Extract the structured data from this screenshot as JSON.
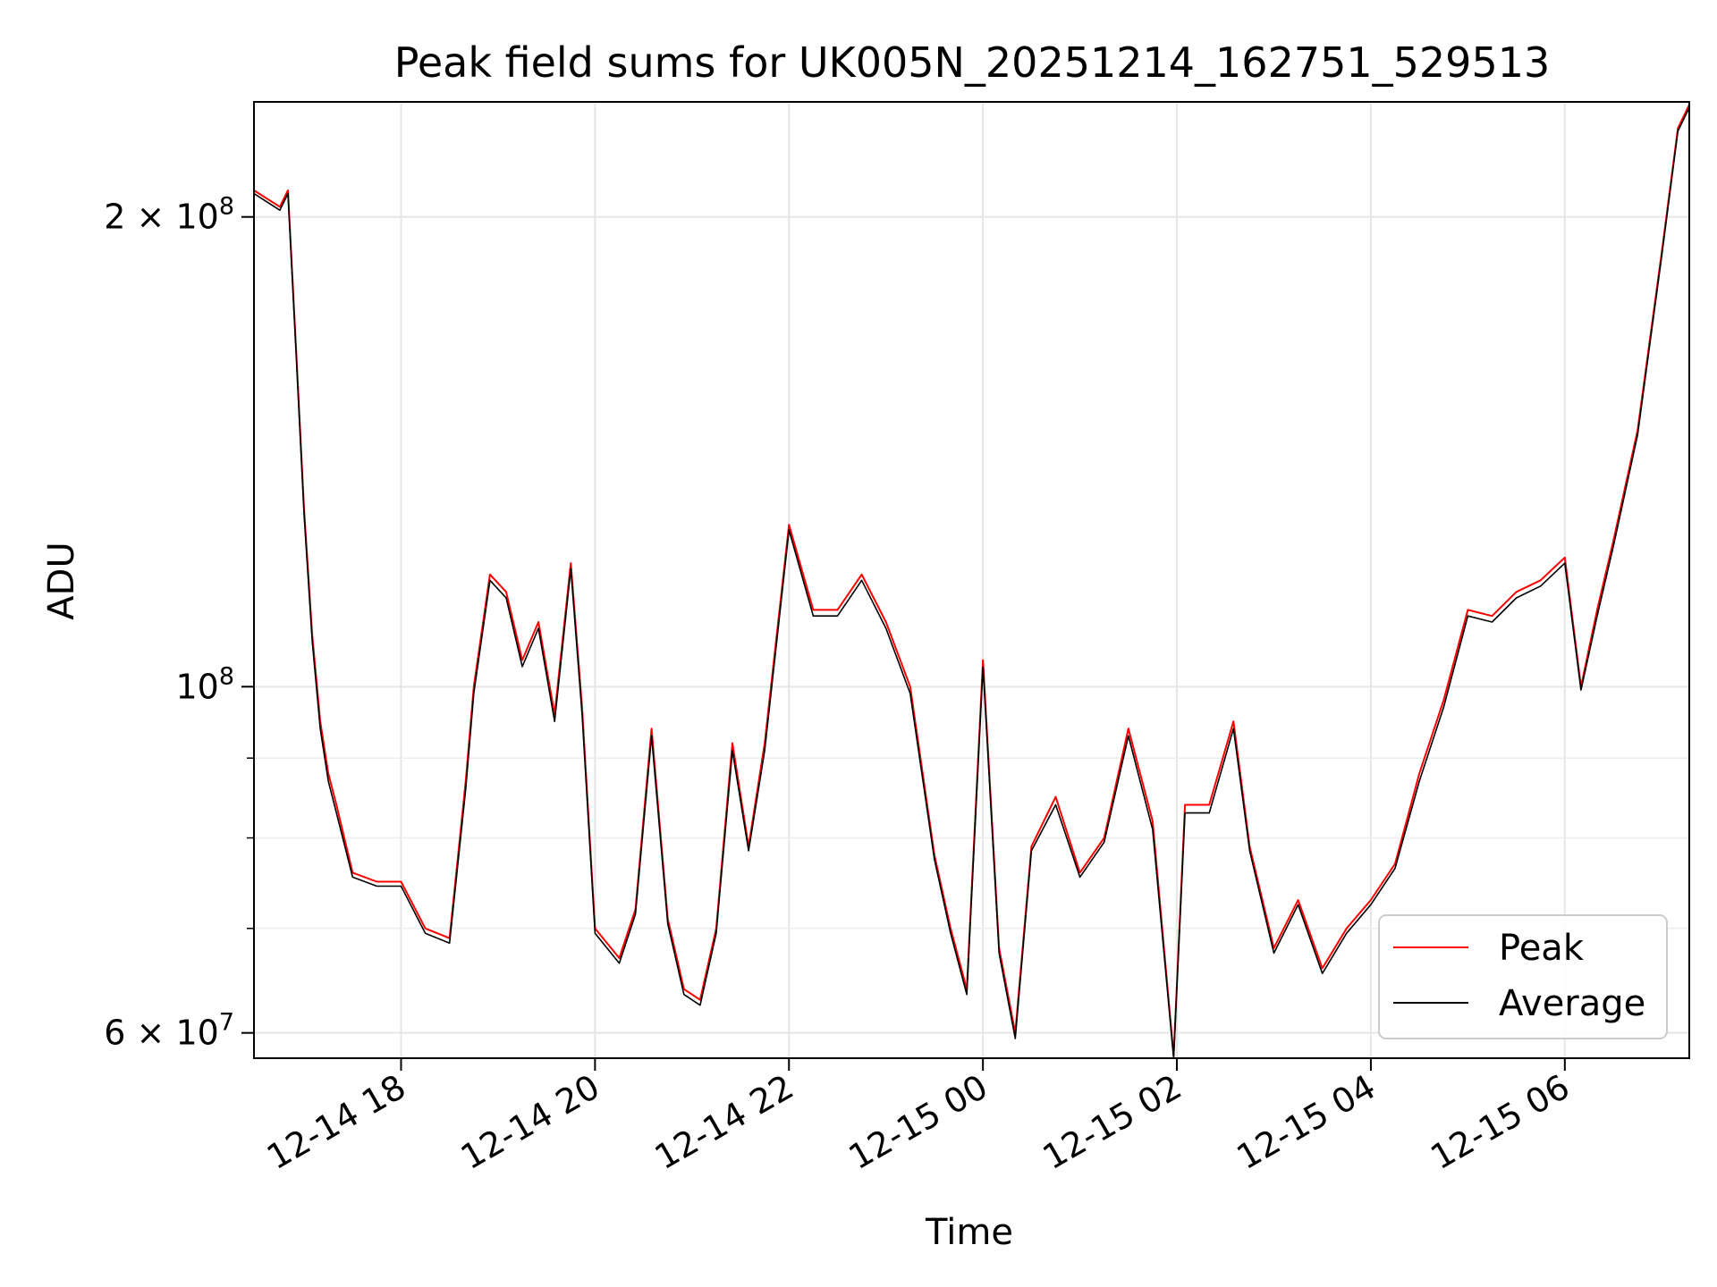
{
  "chart_data": {
    "type": "line",
    "title": "Peak field sums for UK005N_20251214_162751_529513",
    "xlabel": "Time",
    "ylabel": "ADU",
    "yscale": "log",
    "xlim": [
      "2025-12-14 16:29",
      "2025-12-15 07:17"
    ],
    "ylim": [
      57800000,
      237000000
    ],
    "grid": true,
    "legend_position": "lower-right",
    "x_ticks": [
      {
        "value": "2025-12-14 18:00",
        "label": "12-14 18"
      },
      {
        "value": "2025-12-14 20:00",
        "label": "12-14 20"
      },
      {
        "value": "2025-12-14 22:00",
        "label": "12-14 22"
      },
      {
        "value": "2025-12-15 00:00",
        "label": "12-15 00"
      },
      {
        "value": "2025-12-15 02:00",
        "label": "12-15 02"
      },
      {
        "value": "2025-12-15 04:00",
        "label": "12-15 04"
      },
      {
        "value": "2025-12-15 06:00",
        "label": "12-15 06"
      }
    ],
    "y_ticks": [
      {
        "value": 60000000,
        "base": "6",
        "exp": "7"
      },
      {
        "value": 100000000,
        "base": "",
        "exp": "8"
      },
      {
        "value": 200000000,
        "base": "2",
        "exp": "8"
      }
    ],
    "y_minor_ticks": [
      70000000,
      80000000,
      90000000
    ],
    "x": [
      "2025-12-14 16:29",
      "2025-12-14 16:45",
      "2025-12-14 16:50",
      "2025-12-14 16:55",
      "2025-12-14 17:00",
      "2025-12-14 17:05",
      "2025-12-14 17:10",
      "2025-12-14 17:15",
      "2025-12-14 17:20",
      "2025-12-14 17:30",
      "2025-12-14 17:45",
      "2025-12-14 18:00",
      "2025-12-14 18:15",
      "2025-12-14 18:30",
      "2025-12-14 18:40",
      "2025-12-14 18:45",
      "2025-12-14 18:55",
      "2025-12-14 19:05",
      "2025-12-14 19:15",
      "2025-12-14 19:25",
      "2025-12-14 19:35",
      "2025-12-14 19:45",
      "2025-12-14 19:52",
      "2025-12-14 20:00",
      "2025-12-14 20:15",
      "2025-12-14 20:25",
      "2025-12-14 20:35",
      "2025-12-14 20:45",
      "2025-12-14 20:55",
      "2025-12-14 21:05",
      "2025-12-14 21:15",
      "2025-12-14 21:25",
      "2025-12-14 21:35",
      "2025-12-14 21:45",
      "2025-12-14 22:00",
      "2025-12-14 22:15",
      "2025-12-14 22:30",
      "2025-12-14 22:45",
      "2025-12-14 23:00",
      "2025-12-14 23:15",
      "2025-12-14 23:30",
      "2025-12-14 23:40",
      "2025-12-14 23:50",
      "2025-12-15 00:00",
      "2025-12-15 00:10",
      "2025-12-15 00:20",
      "2025-12-15 00:30",
      "2025-12-15 00:45",
      "2025-12-15 01:00",
      "2025-12-15 01:15",
      "2025-12-15 01:30",
      "2025-12-15 01:45",
      "2025-12-15 01:58",
      "2025-12-15 02:05",
      "2025-12-15 02:20",
      "2025-12-15 02:35",
      "2025-12-15 02:45",
      "2025-12-15 03:00",
      "2025-12-15 03:15",
      "2025-12-15 03:30",
      "2025-12-15 03:45",
      "2025-12-15 04:00",
      "2025-12-15 04:15",
      "2025-12-15 04:30",
      "2025-12-15 04:45",
      "2025-12-15 05:00",
      "2025-12-15 05:15",
      "2025-12-15 05:30",
      "2025-12-15 05:45",
      "2025-12-15 06:00",
      "2025-12-15 06:10",
      "2025-12-15 06:20",
      "2025-12-15 06:30",
      "2025-12-15 06:45",
      "2025-12-15 07:00",
      "2025-12-15 07:10",
      "2025-12-15 07:17"
    ],
    "series": [
      {
        "name": "Peak",
        "color": "#ff0000",
        "values": [
          208000000,
          203000000,
          208000000,
          165000000,
          130000000,
          108000000,
          95000000,
          88000000,
          84000000,
          76000000,
          75000000,
          75000000,
          70000000,
          69000000,
          87000000,
          100000000,
          118000000,
          115000000,
          104000000,
          110000000,
          96000000,
          120000000,
          97000000,
          70000000,
          67000000,
          72000000,
          94000000,
          71000000,
          64000000,
          63000000,
          70000000,
          92000000,
          79000000,
          92000000,
          127000000,
          112000000,
          112000000,
          118000000,
          110000000,
          100000000,
          78000000,
          70000000,
          64000000,
          104000000,
          68000000,
          60000000,
          79000000,
          85000000,
          76000000,
          80000000,
          94000000,
          82000000,
          58000000,
          84000000,
          84000000,
          95000000,
          79000000,
          68000000,
          73000000,
          66000000,
          70000000,
          73000000,
          77000000,
          88000000,
          98000000,
          112000000,
          111000000,
          115000000,
          117000000,
          121000000,
          100000000,
          112000000,
          124000000,
          146000000,
          190000000,
          228000000,
          236000000
        ]
      },
      {
        "name": "Average",
        "color": "#000000",
        "values": [
          207000000,
          202000000,
          207000000,
          164000000,
          129000000,
          107000000,
          94000000,
          87000000,
          83000000,
          75500000,
          74500000,
          74500000,
          69500000,
          68500000,
          86000000,
          99000000,
          117000000,
          114000000,
          103000000,
          109000000,
          95000000,
          119000000,
          96000000,
          69500000,
          66500000,
          71500000,
          93000000,
          70500000,
          63500000,
          62500000,
          69500000,
          91000000,
          78500000,
          91000000,
          126000000,
          111000000,
          111000000,
          117000000,
          109000000,
          99000000,
          77500000,
          69500000,
          63500000,
          103000000,
          67500000,
          59500000,
          78500000,
          84000000,
          75500000,
          79500000,
          93000000,
          81000000,
          57800000,
          83000000,
          83000000,
          94000000,
          78500000,
          67500000,
          72500000,
          65500000,
          69500000,
          72500000,
          76500000,
          87000000,
          97000000,
          111000000,
          110000000,
          114000000,
          116000000,
          120000000,
          99500000,
          111000000,
          123000000,
          145000000,
          189000000,
          227000000,
          235000000
        ]
      }
    ]
  }
}
